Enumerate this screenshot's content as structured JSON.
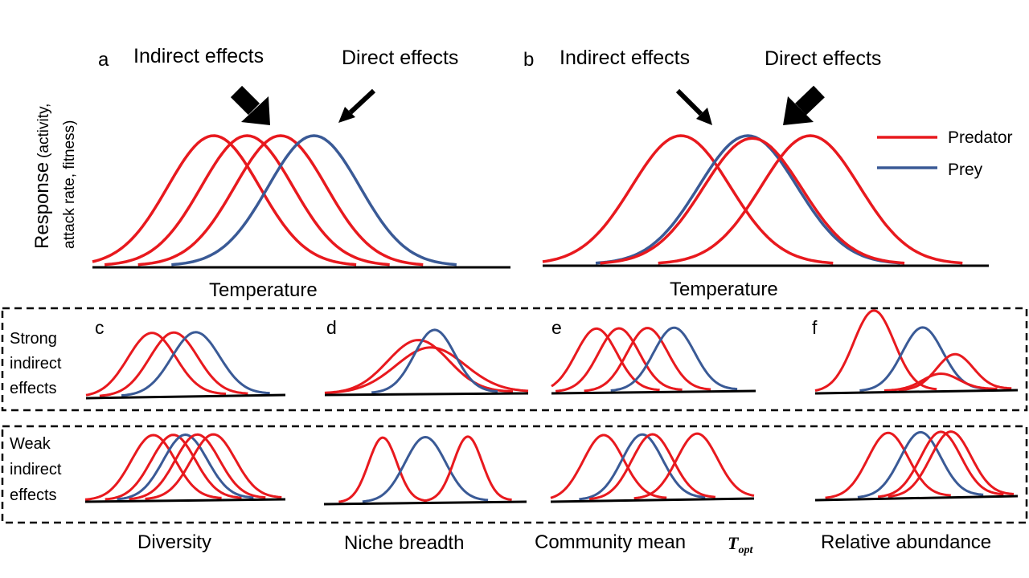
{
  "colors": {
    "predator": "#E8191E",
    "prey": "#3A5A96",
    "axis": "#000000"
  },
  "y_label": {
    "main": "Response",
    "detail_line1": "(activity,",
    "detail_line2": "attack rate, fitness)"
  },
  "panel_a": {
    "letter": "a",
    "indirect_label": "Indirect effects",
    "direct_label": "Direct effects",
    "x_label": "Temperature"
  },
  "panel_b": {
    "letter": "b",
    "indirect_label": "Indirect effects",
    "direct_label": "Direct effects",
    "x_label": "Temperature"
  },
  "legend": {
    "predator": "Predator",
    "prey": "Prey"
  },
  "rows": {
    "strong": {
      "line1": "Strong",
      "line2": "indirect",
      "line3": "effects"
    },
    "weak": {
      "line1": "Weak",
      "line2": "indirect",
      "line3": "effects"
    }
  },
  "small_panels": {
    "c": "c",
    "d": "d",
    "e": "e",
    "f": "f"
  },
  "bottom_labels": {
    "diversity": "Diversity",
    "niche_breadth": "Niche breadth",
    "community_mean": "Community mean",
    "topt_base": "T",
    "topt_sub": "opt",
    "relative_abundance": "Relative abundance"
  },
  "chart_data": {
    "type": "line",
    "units": "normalized temperature (0–1) and response height (0–1)",
    "panels": [
      {
        "id": "a",
        "curves": [
          {
            "role": "predator",
            "mu": 0.29,
            "sigma": 0.11,
            "h": 1.0
          },
          {
            "role": "predator",
            "mu": 0.37,
            "sigma": 0.11,
            "h": 1.0
          },
          {
            "role": "predator",
            "mu": 0.45,
            "sigma": 0.11,
            "h": 1.0
          },
          {
            "role": "prey",
            "mu": 0.53,
            "sigma": 0.11,
            "h": 1.0
          }
        ],
        "arrows": [
          {
            "target": "indirect",
            "weight": "thick"
          },
          {
            "target": "direct",
            "weight": "thin"
          }
        ]
      },
      {
        "id": "b",
        "curves": [
          {
            "role": "predator",
            "mu": 0.31,
            "sigma": 0.11,
            "h": 1.0
          },
          {
            "role": "prey",
            "mu": 0.46,
            "sigma": 0.11,
            "h": 1.0
          },
          {
            "role": "predator",
            "mu": 0.47,
            "sigma": 0.11,
            "h": 0.98
          },
          {
            "role": "predator",
            "mu": 0.6,
            "sigma": 0.11,
            "h": 1.0
          }
        ],
        "arrows": [
          {
            "target": "indirect",
            "weight": "thin"
          },
          {
            "target": "direct",
            "weight": "thick"
          }
        ]
      },
      {
        "id": "c-strong",
        "curves": [
          {
            "role": "predator",
            "mu": 0.33,
            "sigma": 0.12,
            "h": 1.0
          },
          {
            "role": "predator",
            "mu": 0.44,
            "sigma": 0.12,
            "h": 1.0
          },
          {
            "role": "prey",
            "mu": 0.55,
            "sigma": 0.12,
            "h": 1.0
          }
        ]
      },
      {
        "id": "d-strong",
        "curves": [
          {
            "role": "predator",
            "mu": 0.46,
            "sigma": 0.15,
            "h": 0.84
          },
          {
            "role": "predator",
            "mu": 0.52,
            "sigma": 0.17,
            "h": 0.72
          },
          {
            "role": "prey",
            "mu": 0.54,
            "sigma": 0.1,
            "h": 1.0
          }
        ]
      },
      {
        "id": "e-strong",
        "curves": [
          {
            "role": "predator",
            "mu": 0.22,
            "sigma": 0.1,
            "h": 1.0
          },
          {
            "role": "predator",
            "mu": 0.33,
            "sigma": 0.1,
            "h": 1.0
          },
          {
            "role": "predator",
            "mu": 0.47,
            "sigma": 0.1,
            "h": 1.0
          },
          {
            "role": "prey",
            "mu": 0.6,
            "sigma": 0.1,
            "h": 1.0
          }
        ]
      },
      {
        "id": "f-strong",
        "curves": [
          {
            "role": "predator",
            "mu": 0.29,
            "sigma": 0.1,
            "h": 1.0
          },
          {
            "role": "prey",
            "mu": 0.53,
            "sigma": 0.1,
            "h": 0.78
          },
          {
            "role": "predator",
            "mu": 0.69,
            "sigma": 0.09,
            "h": 0.44
          },
          {
            "role": "predator",
            "mu": 0.62,
            "sigma": 0.09,
            "h": 0.2
          }
        ]
      },
      {
        "id": "c-weak",
        "curves": [
          {
            "role": "predator",
            "mu": 0.34,
            "sigma": 0.11,
            "h": 1.0
          },
          {
            "role": "predator",
            "mu": 0.44,
            "sigma": 0.11,
            "h": 1.0
          },
          {
            "role": "prey",
            "mu": 0.5,
            "sigma": 0.11,
            "h": 1.0
          },
          {
            "role": "predator",
            "mu": 0.56,
            "sigma": 0.11,
            "h": 1.0
          },
          {
            "role": "predator",
            "mu": 0.64,
            "sigma": 0.11,
            "h": 1.0
          }
        ]
      },
      {
        "id": "d-weak",
        "curves": [
          {
            "role": "predator",
            "mu": 0.29,
            "sigma": 0.07,
            "h": 1.0
          },
          {
            "role": "prey",
            "mu": 0.5,
            "sigma": 0.1,
            "h": 1.0
          },
          {
            "role": "predator",
            "mu": 0.71,
            "sigma": 0.07,
            "h": 1.0
          }
        ]
      },
      {
        "id": "e-weak",
        "curves": [
          {
            "role": "predator",
            "mu": 0.26,
            "sigma": 0.1,
            "h": 1.0
          },
          {
            "role": "prey",
            "mu": 0.45,
            "sigma": 0.1,
            "h": 1.0
          },
          {
            "role": "predator",
            "mu": 0.5,
            "sigma": 0.1,
            "h": 1.0
          },
          {
            "role": "predator",
            "mu": 0.72,
            "sigma": 0.1,
            "h": 1.0
          }
        ]
      },
      {
        "id": "f-weak",
        "curves": [
          {
            "role": "predator",
            "mu": 0.36,
            "sigma": 0.1,
            "h": 1.0
          },
          {
            "role": "prey",
            "mu": 0.52,
            "sigma": 0.1,
            "h": 1.0
          },
          {
            "role": "predator",
            "mu": 0.62,
            "sigma": 0.1,
            "h": 1.0
          },
          {
            "role": "predator",
            "mu": 0.67,
            "sigma": 0.1,
            "h": 1.0
          }
        ]
      }
    ]
  }
}
